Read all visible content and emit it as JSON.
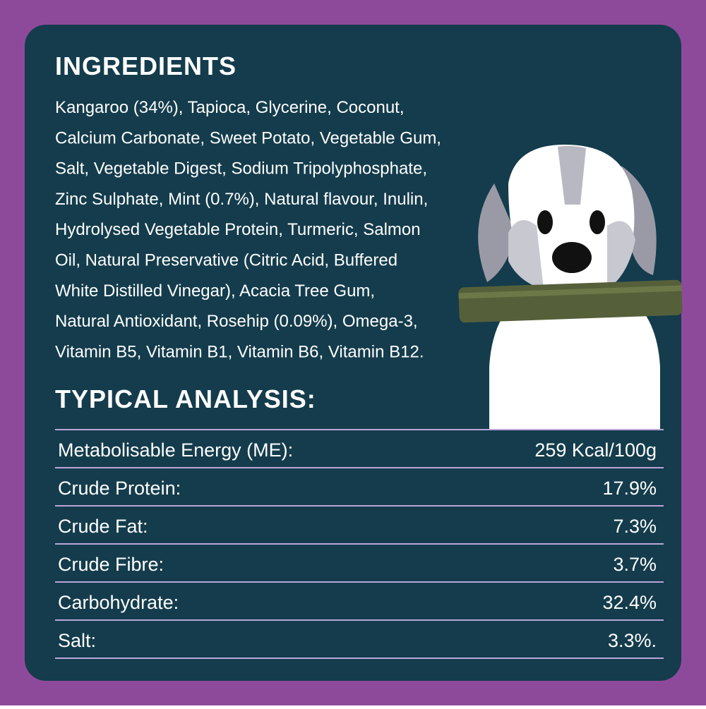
{
  "ingredients": {
    "title": "INGREDIENTS",
    "lines": [
      "Kangaroo (34%), Tapioca, Glycerine, Coconut,",
      "Calcium Carbonate, Sweet Potato, Vegetable Gum,",
      "Salt, Vegetable Digest, Sodium Tripolyphosphate,",
      "Zinc Sulphate, Mint (0.7%), Natural flavour, Inulin,",
      "Hydrolysed Vegetable Protein, Turmeric, Salmon",
      "Oil, Natural Preservative (Citric Acid, Buffered",
      "White Distilled Vinegar), Acacia Tree Gum,",
      "Natural Antioxidant, Rosehip (0.09%), Omega-3,",
      "Vitamin B5, Vitamin B1, Vitamin B6, Vitamin B12."
    ]
  },
  "analysis": {
    "title": "TYPICAL ANALYSIS:",
    "rows": [
      [
        "Metabolisable Energy (ME):",
        "259 Kcal/100g"
      ],
      [
        "Crude Protein:",
        "17.9%"
      ],
      [
        "Crude Fat:",
        "7.3%"
      ],
      [
        "Crude Fibre:",
        "3.7%"
      ],
      [
        "Carbohydrate:",
        "32.4%"
      ],
      [
        "Salt:",
        "3.3%."
      ]
    ]
  }
}
